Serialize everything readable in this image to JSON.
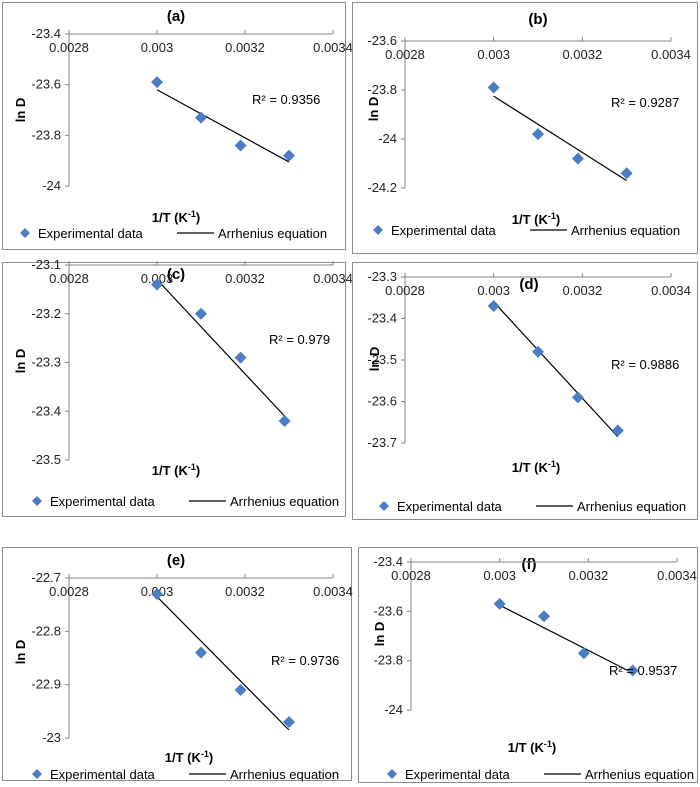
{
  "legend": {
    "marker_label": "Experimental data",
    "line_label": "Arrhenius equation"
  },
  "colors": {
    "marker": "#4a7dc4",
    "line": "#000000",
    "axis": "#868686"
  },
  "chart_data": [
    {
      "type": "scatter",
      "title": "(a)",
      "xlabel": "1/T (K",
      "xlabel_sup": "-1",
      "xlabel_close": ")",
      "ylabel": "ln D",
      "xlim": [
        0.0028,
        0.0034
      ],
      "ylim": [
        -24,
        -23.4
      ],
      "x_ticks": [
        "0.0028",
        "0.003",
        "0.0032",
        "0.0034"
      ],
      "x_tick_values": [
        0.0028,
        0.003,
        0.0032,
        0.0034
      ],
      "y_ticks": [
        "-23.4",
        "-23.6",
        "-23.8",
        "-24"
      ],
      "y_tick_values": [
        -23.4,
        -23.6,
        -23.8,
        -24
      ],
      "series": [
        {
          "name": "Experimental data",
          "x": [
            0.003,
            0.0031,
            0.00319,
            0.0033
          ],
          "y": [
            -23.59,
            -23.73,
            -23.84,
            -23.88
          ]
        },
        {
          "name": "Arrhenius equation",
          "x": [
            0.003,
            0.0033
          ],
          "y": [
            -23.62,
            -23.905
          ]
        }
      ],
      "r2": "R² = 0.9356",
      "legend_position": "bottom",
      "grid": false
    },
    {
      "type": "scatter",
      "title": "(b)",
      "xlabel": "1/T (K",
      "xlabel_sup": "-1",
      "xlabel_close": ")",
      "ylabel": "ln D",
      "xlim": [
        0.0028,
        0.0034
      ],
      "ylim": [
        -24.2,
        -23.6
      ],
      "x_ticks": [
        "0.0028",
        "0.003",
        "0.0032",
        "0.0034"
      ],
      "x_tick_values": [
        0.0028,
        0.003,
        0.0032,
        0.0034
      ],
      "y_ticks": [
        "-23.6",
        "-23.8",
        "-24",
        "-24.2"
      ],
      "y_tick_values": [
        -23.6,
        -23.8,
        -24,
        -24.2
      ],
      "series": [
        {
          "name": "Experimental data",
          "x": [
            0.003,
            0.0031,
            0.00319,
            0.0033
          ],
          "y": [
            -23.79,
            -23.98,
            -24.08,
            -24.14
          ]
        },
        {
          "name": "Arrhenius equation",
          "x": [
            0.003,
            0.0033
          ],
          "y": [
            -23.825,
            -24.17
          ]
        }
      ],
      "r2": "R² = 0.9287",
      "legend_position": "bottom",
      "grid": false
    },
    {
      "type": "scatter",
      "title": "(c)",
      "xlabel": "1/T (K",
      "xlabel_sup": "-1",
      "xlabel_close": ")",
      "ylabel": "ln D",
      "xlim": [
        0.0028,
        0.0034
      ],
      "ylim": [
        -23.5,
        -23.1
      ],
      "x_ticks": [
        "0.0028",
        "0.003",
        "0.0032",
        "0.0034"
      ],
      "x_tick_values": [
        0.0028,
        0.003,
        0.0032,
        0.0034
      ],
      "y_ticks": [
        "-23.1",
        "-23.2",
        "-23.3",
        "-23.4",
        "-23.5"
      ],
      "y_tick_values": [
        -23.1,
        -23.2,
        -23.3,
        -23.4,
        -23.5
      ],
      "series": [
        {
          "name": "Experimental data",
          "x": [
            0.003,
            0.0031,
            0.00319,
            0.00329
          ],
          "y": [
            -23.14,
            -23.2,
            -23.29,
            -23.42
          ]
        },
        {
          "name": "Arrhenius equation",
          "x": [
            0.003,
            0.00329
          ],
          "y": [
            -23.13,
            -23.41
          ]
        }
      ],
      "r2": "R² = 0.979",
      "legend_position": "bottom",
      "grid": false
    },
    {
      "type": "scatter",
      "title": "(d)",
      "xlabel": "1/T (K",
      "xlabel_sup": "-1",
      "xlabel_close": ")",
      "ylabel": "ln D",
      "xlim": [
        0.0028,
        0.0034
      ],
      "ylim": [
        -23.7,
        -23.3
      ],
      "x_ticks": [
        "0.0028",
        "0.003",
        "0.0032",
        "0.0034"
      ],
      "x_tick_values": [
        0.0028,
        0.003,
        0.0032,
        0.0034
      ],
      "y_ticks": [
        "-23.3",
        "-23.4",
        "-23.5",
        "-23.6",
        "-23.7"
      ],
      "y_tick_values": [
        -23.3,
        -23.4,
        -23.5,
        -23.6,
        -23.7
      ],
      "series": [
        {
          "name": "Experimental data",
          "x": [
            0.003,
            0.0031,
            0.00319,
            0.00328
          ],
          "y": [
            -23.37,
            -23.48,
            -23.59,
            -23.67
          ]
        },
        {
          "name": "Arrhenius equation",
          "x": [
            0.003,
            0.00328
          ],
          "y": [
            -23.36,
            -23.685
          ]
        }
      ],
      "r2": "R² = 0.9886",
      "legend_position": "bottom",
      "grid": false
    },
    {
      "type": "scatter",
      "title": "(e)",
      "xlabel": "1/T (K",
      "xlabel_sup": "-1",
      "xlabel_close": ")",
      "ylabel": "ln D",
      "xlim": [
        0.0028,
        0.0034
      ],
      "ylim": [
        -23,
        -22.7
      ],
      "x_ticks": [
        "0.0028",
        "0.003",
        "0.0032",
        "0.0034"
      ],
      "x_tick_values": [
        0.0028,
        0.003,
        0.0032,
        0.0034
      ],
      "y_ticks": [
        "-22.7",
        "-22.8",
        "-22.9",
        "-23"
      ],
      "y_tick_values": [
        -22.7,
        -22.8,
        -22.9,
        -23
      ],
      "series": [
        {
          "name": "Experimental data",
          "x": [
            0.003,
            0.0031,
            0.00319,
            0.0033
          ],
          "y": [
            -22.73,
            -22.84,
            -22.91,
            -22.97
          ]
        },
        {
          "name": "Arrhenius equation",
          "x": [
            0.003,
            0.0033
          ],
          "y": [
            -22.735,
            -22.985
          ]
        }
      ],
      "r2": "R² = 0.9736",
      "legend_position": "bottom",
      "grid": false
    },
    {
      "type": "scatter",
      "title": "(f)",
      "xlabel": "1/T (K",
      "xlabel_sup": "-1",
      "xlabel_close": ")",
      "ylabel": "ln D",
      "xlim": [
        0.0028,
        0.0034
      ],
      "ylim": [
        -24,
        -23.4
      ],
      "x_ticks": [
        "0.0028",
        "0.003",
        "0.0032",
        "0.0034"
      ],
      "x_tick_values": [
        0.0028,
        0.003,
        0.0032,
        0.0034
      ],
      "y_ticks": [
        "-23.4",
        "-23.6",
        "-23.8",
        "-24"
      ],
      "y_tick_values": [
        -23.4,
        -23.6,
        -23.8,
        -24
      ],
      "series": [
        {
          "name": "Experimental data",
          "x": [
            0.003,
            0.0031,
            0.00319,
            0.0033
          ],
          "y": [
            -23.57,
            -23.62,
            -23.77,
            -23.84
          ]
        },
        {
          "name": "Arrhenius equation",
          "x": [
            0.003,
            0.0033
          ],
          "y": [
            -23.575,
            -23.85
          ]
        }
      ],
      "r2": "R² = 0.9537",
      "legend_position": "bottom",
      "grid": false
    }
  ]
}
